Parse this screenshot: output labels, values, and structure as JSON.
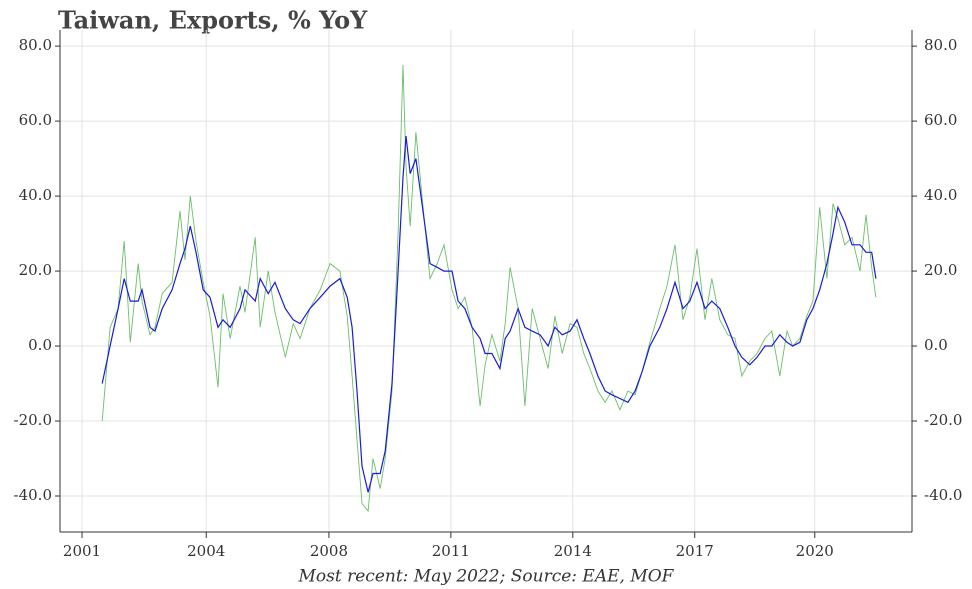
{
  "chart_data": {
    "type": "line",
    "title": "Taiwan, Exports, % YoY",
    "caption": "Most recent: May 2022; Source: EAE, MOF",
    "x": [
      2002.0,
      2002.21,
      2002.42,
      2002.58,
      2002.74,
      2002.95,
      2003.05,
      2003.26,
      2003.39,
      2003.58,
      2003.84,
      2004.05,
      2004.18,
      2004.32,
      2004.47,
      2004.66,
      2004.84,
      2005.05,
      2005.18,
      2005.37,
      2005.63,
      2005.76,
      2006.03,
      2006.16,
      2006.37,
      2006.55,
      2006.82,
      2007.03,
      2007.21,
      2007.47,
      2007.74,
      2008.0,
      2008.26,
      2008.45,
      2008.58,
      2008.71,
      2008.84,
      2009.0,
      2009.13,
      2009.32,
      2009.45,
      2009.63,
      2009.79,
      2009.92,
      2010.0,
      2010.11,
      2010.26,
      2010.42,
      2010.63,
      2010.82,
      2011.0,
      2011.21,
      2011.37,
      2011.55,
      2011.74,
      2011.95,
      2012.08,
      2012.26,
      2012.47,
      2012.61,
      2012.74,
      2012.95,
      2013.13,
      2013.32,
      2013.53,
      2013.74,
      2013.92,
      2014.11,
      2014.32,
      2014.5,
      2014.68,
      2014.84,
      2015.05,
      2015.24,
      2015.42,
      2015.63,
      2015.84,
      2016.03,
      2016.21,
      2016.42,
      2016.68,
      2016.87,
      2017.08,
      2017.29,
      2017.47,
      2017.66,
      2017.87,
      2018.05,
      2018.26,
      2018.47,
      2018.66,
      2018.84,
      2019.05,
      2019.24,
      2019.45,
      2019.63,
      2019.84,
      2020.03,
      2020.18,
      2020.37,
      2020.55,
      2020.71,
      2020.89,
      2021.08,
      2021.24,
      2021.37,
      2021.55,
      2021.74,
      2021.95,
      2022.11,
      2022.26,
      2022.37
    ],
    "series": [
      {
        "color": "#6abf69",
        "values": [
          -20,
          5,
          10,
          28,
          1,
          22,
          12,
          3,
          5,
          14,
          17,
          36,
          23,
          40,
          28,
          17,
          8,
          -11,
          14,
          2,
          16,
          9,
          29,
          5,
          20,
          9,
          -3,
          6,
          2,
          10,
          15,
          22,
          20,
          8,
          -8,
          -25,
          -42,
          -44,
          -30,
          -38,
          -30,
          -12,
          30,
          75,
          48,
          32,
          57,
          40,
          18,
          22,
          27,
          15,
          10,
          13,
          5,
          -16,
          -5,
          3,
          -4,
          6,
          21,
          10,
          -16,
          10,
          2,
          -6,
          8,
          -2,
          6,
          5,
          -2,
          -6,
          -12,
          -15,
          -12,
          -17,
          -12,
          -13,
          -7,
          1,
          10,
          16,
          27,
          7,
          13,
          26,
          7,
          18,
          7,
          3,
          2,
          -8,
          -4,
          -2,
          2,
          4,
          -8,
          4,
          0,
          2,
          8,
          12,
          37,
          18,
          38,
          34,
          27,
          29,
          20,
          35,
          21,
          13
        ]
      },
      {
        "color": "#1a1adb",
        "values": [
          -10,
          0,
          10,
          18,
          12,
          12,
          15,
          5,
          4,
          10,
          15,
          22,
          26,
          32,
          25,
          15,
          13,
          5,
          7,
          5,
          10,
          15,
          12,
          18,
          14,
          17,
          10,
          7,
          6,
          10,
          13,
          16,
          18,
          13,
          5,
          -12,
          -32,
          -39,
          -34,
          -34,
          -28,
          -10,
          20,
          45,
          56,
          46,
          50,
          38,
          22,
          21,
          20,
          20,
          12,
          10,
          5,
          2,
          -2,
          -2,
          -6,
          2,
          4,
          10,
          5,
          4,
          3,
          0,
          5,
          3,
          4,
          7,
          2,
          -2,
          -8,
          -12,
          -13,
          -14,
          -15,
          -12,
          -7,
          0,
          5,
          10,
          17,
          10,
          12,
          17,
          10,
          12,
          10,
          5,
          0,
          -3,
          -5,
          -3,
          0,
          0,
          3,
          1,
          0,
          1,
          7,
          10,
          15,
          22,
          30,
          37,
          33,
          27,
          27,
          25,
          25,
          18
        ]
      }
    ],
    "xlim": [
      2000.89,
      2023.32
    ],
    "ylim": [
      -49.6,
      84.3
    ],
    "xticks": [
      {
        "value": 2001.47,
        "label": "2001"
      },
      {
        "value": 2004.74,
        "label": "2004"
      },
      {
        "value": 2007.97,
        "label": "2008"
      },
      {
        "value": 2011.18,
        "label": "2011"
      },
      {
        "value": 2014.39,
        "label": "2014"
      },
      {
        "value": 2017.6,
        "label": "2017"
      },
      {
        "value": 2020.76,
        "label": "2020"
      }
    ],
    "yticks": [
      {
        "value": -40,
        "label": "-40.0"
      },
      {
        "value": -20,
        "label": "-20.0"
      },
      {
        "value": 0,
        "label": "0.0"
      },
      {
        "value": 20,
        "label": "20.0"
      },
      {
        "value": 40,
        "label": "40.0"
      },
      {
        "value": 60,
        "label": "60.0"
      },
      {
        "value": 80,
        "label": "80.0"
      }
    ],
    "grid": true
  }
}
